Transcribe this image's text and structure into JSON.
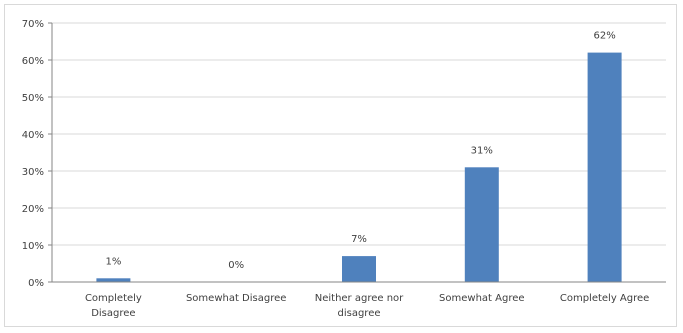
{
  "chart_data": {
    "type": "bar",
    "categories": [
      [
        "Completely",
        "Disagree"
      ],
      [
        "Somewhat Disagree"
      ],
      [
        "Neither agree nor",
        "disagree"
      ],
      [
        "Somewhat Agree"
      ],
      [
        "Completely Agree"
      ]
    ],
    "values": [
      1,
      0,
      7,
      31,
      62
    ],
    "data_labels": [
      "1%",
      "0%",
      "7%",
      "31%",
      "62%"
    ],
    "ylim": [
      0,
      70
    ],
    "yticks": [
      "0%",
      "10%",
      "20%",
      "30%",
      "40%",
      "50%",
      "60%",
      "70%"
    ],
    "grid": true,
    "legend": "none",
    "bar_color": "#4f81bd",
    "grid_color": "#d9d9d9",
    "axis_color": "#868686"
  }
}
